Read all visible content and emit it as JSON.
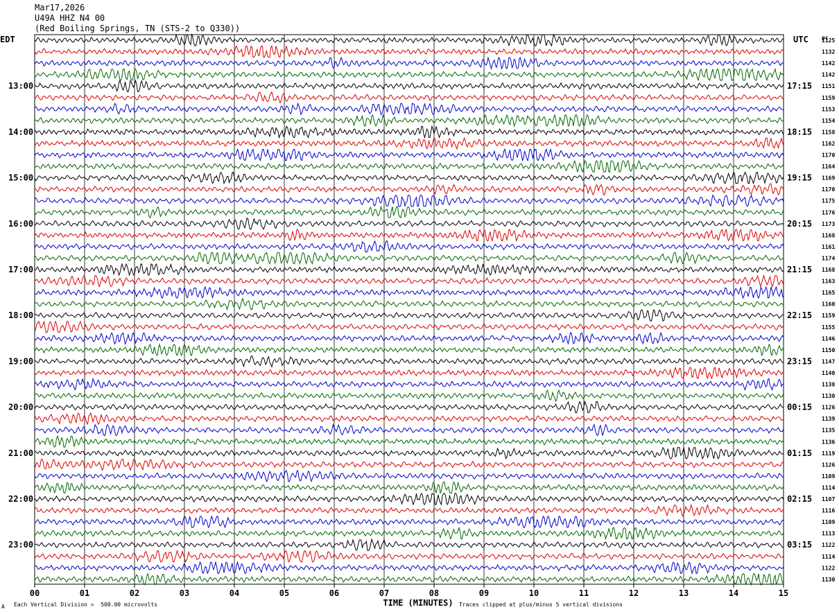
{
  "header": {
    "date": "Mar17,2026",
    "station": "U49A HHZ N4 00",
    "location": "(Red Boiling Springs, TN (STS-2 to Q330))"
  },
  "chart_data": {
    "type": "line",
    "title": "Mar17,2026",
    "xlabel": "TIME (MINUTES)",
    "left_axis_label": "EDT",
    "right_axis_label": "UTC",
    "right_col_label": "pc",
    "x_ticks": [
      "00",
      "01",
      "02",
      "03",
      "04",
      "05",
      "06",
      "07",
      "08",
      "09",
      "10",
      "11",
      "12",
      "13",
      "14",
      "15"
    ],
    "xlim": [
      0,
      15
    ],
    "rows_per_hour": 4,
    "row_minutes": 15,
    "trace_colors": [
      "#000000",
      "#dd0000",
      "#0000cc",
      "#006600"
    ],
    "left_hour_labels": [
      "13:00",
      "14:00",
      "15:00",
      "16:00",
      "17:00",
      "18:00",
      "19:00",
      "20:00",
      "21:00",
      "22:00",
      "23:00"
    ],
    "right_hour_labels": [
      "17:15",
      "18:15",
      "19:15",
      "20:15",
      "21:15",
      "22:15",
      "23:15",
      "00:15",
      "01:15",
      "02:15",
      "03:15"
    ],
    "first_labeled_row": 4,
    "row_values": [
      1125,
      1132,
      1142,
      1142,
      1151,
      1159,
      1153,
      1154,
      1158,
      1162,
      1170,
      1164,
      1169,
      1170,
      1175,
      1176,
      1173,
      1168,
      1161,
      1174,
      1168,
      1163,
      1165,
      1160,
      1159,
      1155,
      1146,
      1150,
      1147,
      1140,
      1138,
      1130,
      1126,
      1139,
      1135,
      1136,
      1119,
      1126,
      1109,
      1114,
      1107,
      1116,
      1109,
      1113,
      1122,
      1114,
      1122,
      1130
    ],
    "footer_left": "Each Vertical Division =  500.00 microvolts",
    "footer_right": "Traces clipped at plus/minus 5 vertical divisions",
    "footer_mark": "A"
  }
}
